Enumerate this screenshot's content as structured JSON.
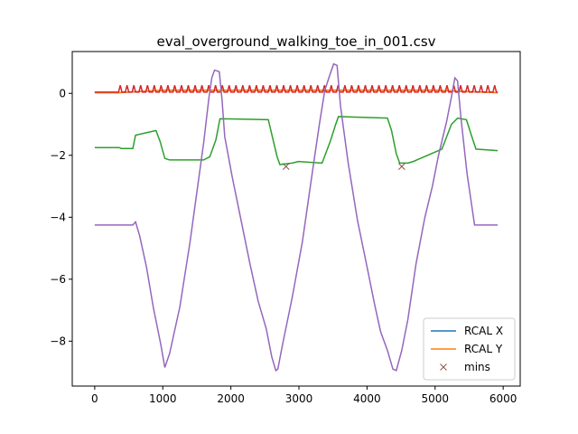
{
  "chart_data": {
    "type": "line",
    "title": "eval_overground_walking_toe_in_001.csv",
    "xlabel": "",
    "ylabel": "",
    "xlim": [
      -330,
      6250
    ],
    "ylim": [
      -9.45,
      1.35
    ],
    "xticks": [
      0,
      1000,
      2000,
      3000,
      4000,
      5000,
      6000
    ],
    "yticks": [
      0,
      -2,
      -4,
      -6,
      -8
    ],
    "grid": false,
    "legend": {
      "placement": "bottom-right",
      "entries": [
        "RCAL X",
        "RCAL Y",
        "mins"
      ]
    },
    "colors": {
      "rcal_x": "#1f77b4",
      "rcal_y": "#ff7f0e",
      "red_series": "#d62728",
      "green_series": "#2ca02c",
      "purple_series": "#9467bd",
      "mins": "#8c564b"
    },
    "series": [
      {
        "name": "RCAL X",
        "x": [
          0,
          350,
          600,
          1000,
          2000,
          3000,
          4000,
          5000,
          5920
        ],
        "y": [
          0.02,
          0.02,
          0.05,
          0.1,
          0.1,
          0.1,
          0.1,
          0.1,
          0.02
        ]
      },
      {
        "name": "RCAL Y",
        "x": [
          0,
          350,
          600,
          1000,
          2000,
          3000,
          4000,
          5000,
          5920
        ],
        "y": [
          0.02,
          0.02,
          0.05,
          0.1,
          0.1,
          0.1,
          0.1,
          0.1,
          0.02
        ]
      },
      {
        "key": "red",
        "baseline": 0.04,
        "oscillation": {
          "x_start": 350,
          "x_end": 5920,
          "period": 100,
          "amplitude": 0.22
        }
      },
      {
        "key": "green",
        "x": [
          0,
          360,
          390,
          560,
          600,
          900,
          960,
          1030,
          1100,
          1600,
          1690,
          1780,
          1840,
          2550,
          2620,
          2680,
          2720,
          2900,
          2990,
          3340,
          3460,
          3540,
          3580,
          4300,
          4360,
          4430,
          4480,
          4600,
          4680,
          4730,
          5100,
          5240,
          5330,
          5460,
          5540,
          5600,
          5920
        ],
        "y": [
          -1.75,
          -1.75,
          -1.78,
          -1.78,
          -1.35,
          -1.2,
          -1.55,
          -2.1,
          -2.15,
          -2.15,
          -2.05,
          -1.5,
          -0.82,
          -0.85,
          -1.5,
          -2.05,
          -2.3,
          -2.25,
          -2.2,
          -2.25,
          -1.55,
          -1.0,
          -0.75,
          -0.8,
          -1.2,
          -1.95,
          -2.25,
          -2.25,
          -2.2,
          -2.15,
          -1.8,
          -1.0,
          -0.8,
          -0.85,
          -1.4,
          -1.8,
          -1.85
        ]
      },
      {
        "key": "purple",
        "x": [
          0,
          560,
          600,
          660,
          760,
          860,
          970,
          1030,
          1100,
          1250,
          1400,
          1500,
          1600,
          1680,
          1720,
          1760,
          1830,
          1870,
          1910,
          2020,
          2150,
          2280,
          2400,
          2520,
          2600,
          2660,
          2690,
          2760,
          2900,
          3050,
          3200,
          3300,
          3380,
          3470,
          3510,
          3560,
          3610,
          3720,
          3860,
          4000,
          4110,
          4200,
          4300,
          4380,
          4430,
          4510,
          4600,
          4720,
          4850,
          4960,
          5050,
          5170,
          5250,
          5290,
          5330,
          5380,
          5470,
          5580,
          5920
        ],
        "y": [
          -4.25,
          -4.25,
          -4.15,
          -4.6,
          -5.6,
          -6.9,
          -8.1,
          -8.85,
          -8.4,
          -6.9,
          -4.8,
          -3.2,
          -1.6,
          -0.1,
          0.5,
          0.75,
          0.7,
          -0.2,
          -1.4,
          -2.7,
          -4.1,
          -5.5,
          -6.7,
          -7.6,
          -8.5,
          -8.95,
          -8.9,
          -8.1,
          -6.6,
          -4.8,
          -2.5,
          -1.0,
          0.1,
          0.7,
          0.95,
          0.9,
          -0.4,
          -2.2,
          -4.1,
          -5.6,
          -6.8,
          -7.7,
          -8.3,
          -8.9,
          -8.95,
          -8.3,
          -7.3,
          -5.5,
          -4.0,
          -3.0,
          -2.0,
          -0.9,
          0.0,
          0.5,
          0.4,
          -0.8,
          -2.6,
          -4.25,
          -4.25
        ]
      }
    ],
    "mins": {
      "name": "mins",
      "x": [
        2810,
        4510
      ],
      "y": [
        -2.36,
        -2.36
      ]
    }
  }
}
